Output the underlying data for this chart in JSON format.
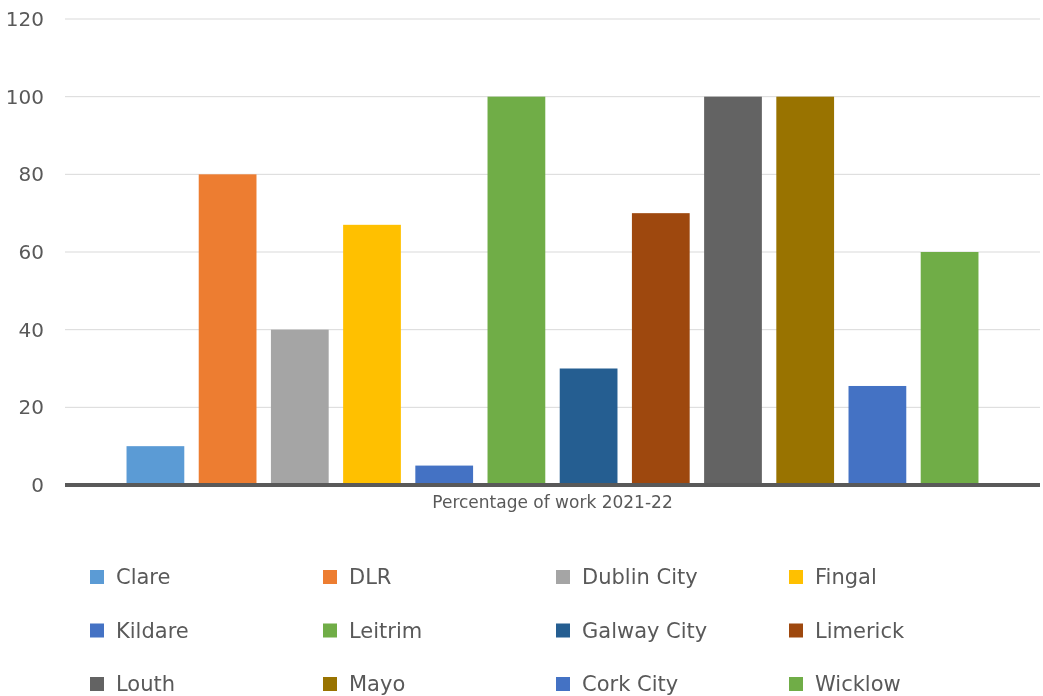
{
  "chart_data": {
    "type": "bar",
    "categories": [
      "Percentage of work 2021-22"
    ],
    "series": [
      {
        "name": "Clare",
        "color": "#5b9bd5",
        "values": [
          10
        ]
      },
      {
        "name": "DLR",
        "color": "#ed7d31",
        "values": [
          80
        ]
      },
      {
        "name": "Dublin City",
        "color": "#a5a5a5",
        "values": [
          40
        ]
      },
      {
        "name": "Fingal",
        "color": "#ffc000",
        "values": [
          67
        ]
      },
      {
        "name": "Kildare",
        "color": "#4472c4",
        "values": [
          5
        ]
      },
      {
        "name": "Leitrim",
        "color": "#70ad47",
        "values": [
          100
        ]
      },
      {
        "name": "Galway City",
        "color": "#255e91",
        "values": [
          30
        ]
      },
      {
        "name": "Limerick",
        "color": "#9e480e",
        "values": [
          70
        ]
      },
      {
        "name": "Louth",
        "color": "#636363",
        "values": [
          100
        ]
      },
      {
        "name": "Mayo",
        "color": "#997300",
        "values": [
          100
        ]
      },
      {
        "name": "Cork City",
        "color": "#4472c4",
        "values": [
          25.5
        ]
      },
      {
        "name": "Wicklow",
        "color": "#70ad47",
        "values": [
          60
        ]
      }
    ],
    "ylim": [
      0,
      120
    ],
    "yticks": [
      0,
      20,
      40,
      60,
      80,
      100,
      120
    ],
    "grid": "y",
    "legend": "bottom"
  }
}
